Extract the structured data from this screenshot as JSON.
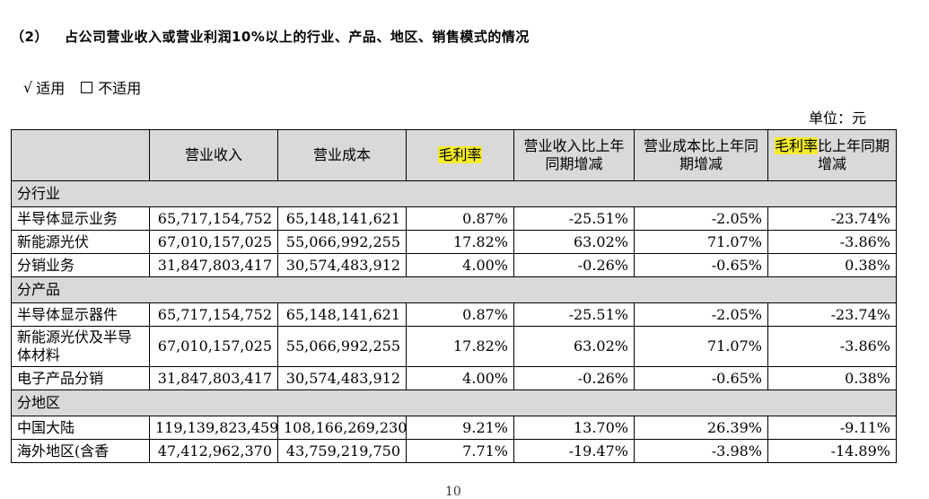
{
  "section": {
    "number": "（2）",
    "title": "占公司营业收入或营业利润10%以上的行业、产品、地区、销售模式的情况"
  },
  "options": {
    "checkmark": "√",
    "applicable": "适用",
    "not_applicable": "不适用"
  },
  "unit": "单位：元",
  "highlight_color": "#f6ec2a",
  "header_bg": "#d9d9d9",
  "table": {
    "headers": [
      {
        "text": "",
        "highlight": "",
        "rest": ""
      },
      {
        "text": "营业收入",
        "highlight": "",
        "rest": ""
      },
      {
        "text": "营业成本",
        "highlight": "",
        "rest": ""
      },
      {
        "text": "",
        "highlight": "毛利率",
        "rest": ""
      },
      {
        "text": "营业收入比上年同期增减",
        "highlight": "",
        "rest": ""
      },
      {
        "text": "营业成本比上年同期增减",
        "highlight": "",
        "rest": ""
      },
      {
        "text": "",
        "highlight": "毛利率",
        "rest": "比上年同期增减"
      }
    ],
    "sections": [
      {
        "label": "分行业",
        "rows": [
          [
            "半导体显示业务",
            "65,717,154,752",
            "65,148,141,621",
            "0.87%",
            "-25.51%",
            "-2.05%",
            "-23.74%"
          ],
          [
            "新能源光伏",
            "67,010,157,025",
            "55,066,992,255",
            "17.82%",
            "63.02%",
            "71.07%",
            "-3.86%"
          ],
          [
            "分销业务",
            "31,847,803,417",
            "30,574,483,912",
            "4.00%",
            "-0.26%",
            "-0.65%",
            "0.38%"
          ]
        ]
      },
      {
        "label": "分产品",
        "rows": [
          [
            "半导体显示器件",
            "65,717,154,752",
            "65,148,141,621",
            "0.87%",
            "-25.51%",
            "-2.05%",
            "-23.74%"
          ],
          [
            "新能源光伏及半导体材料",
            "67,010,157,025",
            "55,066,992,255",
            "17.82%",
            "63.02%",
            "71.07%",
            "-3.86%"
          ],
          [
            "电子产品分销",
            "31,847,803,417",
            "30,574,483,912",
            "4.00%",
            "-0.26%",
            "-0.65%",
            "0.38%"
          ]
        ]
      },
      {
        "label": "分地区",
        "rows": [
          [
            "中国大陆",
            "119,139,823,459",
            "108,166,269,230",
            "9.21%",
            "13.70%",
            "26.39%",
            "-9.11%"
          ],
          [
            "海外地区(含香",
            "47,412,962,370",
            "43,759,219,750",
            "7.71%",
            "-19.47%",
            "-3.98%",
            "-14.89%"
          ]
        ]
      }
    ]
  },
  "page_number": "10"
}
